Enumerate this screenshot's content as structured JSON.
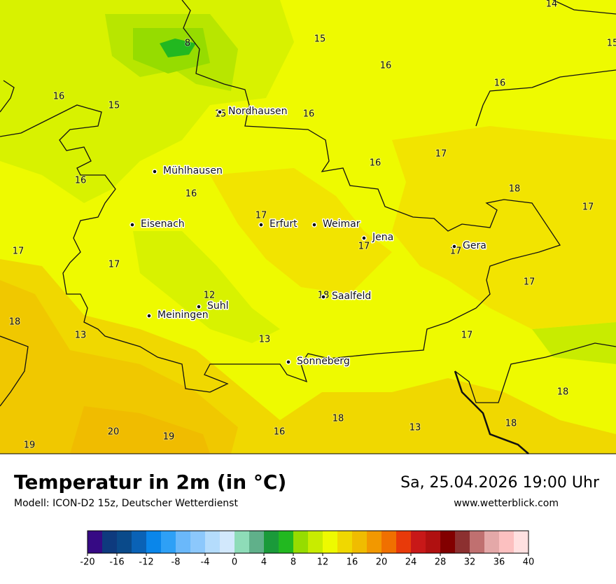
{
  "map": {
    "labels": [
      14,
      15,
      15,
      8,
      16,
      16,
      16,
      15,
      15,
      16,
      17,
      16,
      18,
      16,
      16,
      17,
      17,
      17,
      17,
      17,
      17,
      17,
      12,
      18,
      18,
      13,
      13,
      17,
      18,
      18,
      13,
      18,
      20,
      19,
      16,
      19
    ],
    "cities": [
      "Nordhausen",
      "Mühlhausen",
      "Eisenach",
      "Erfurt",
      "Weimar",
      "Jena",
      "Gera",
      "Suhl",
      "Meiningen",
      "Saalfeld",
      "Sonneberg"
    ]
  },
  "header": {
    "title": "Temperatur in 2m (in °C)",
    "subtitle": "Modell: ICON-D2 15z, Deutscher Wetterdienst",
    "datetime": "Sa, 25.04.2026 19:00 Uhr",
    "website": "www.wetterblick.com"
  },
  "legend": {
    "range": [
      -20,
      40
    ],
    "colors": [
      "#360a84",
      "#0e3a7e",
      "#0a4a8a",
      "#0a62b6",
      "#0a86ea",
      "#2ea0f6",
      "#6ab8fa",
      "#8cc8fc",
      "#b4dcfc",
      "#d2e8fc",
      "#8edcb8",
      "#60b08a",
      "#1a9a3a",
      "#22b820",
      "#96dc00",
      "#c8ec00",
      "#eefa00",
      "#f0d800",
      "#f0bc00",
      "#f29800",
      "#f07000",
      "#e83a0a",
      "#c81818",
      "#b01010",
      "#820000",
      "#8c3030",
      "#c07070",
      "#e4a8a8",
      "#fcc0c0",
      "#ffe0e0"
    ],
    "ticks": [
      -20,
      -16,
      -12,
      -8,
      -4,
      0,
      4,
      8,
      12,
      16,
      20,
      24,
      28,
      32,
      36,
      40
    ]
  }
}
